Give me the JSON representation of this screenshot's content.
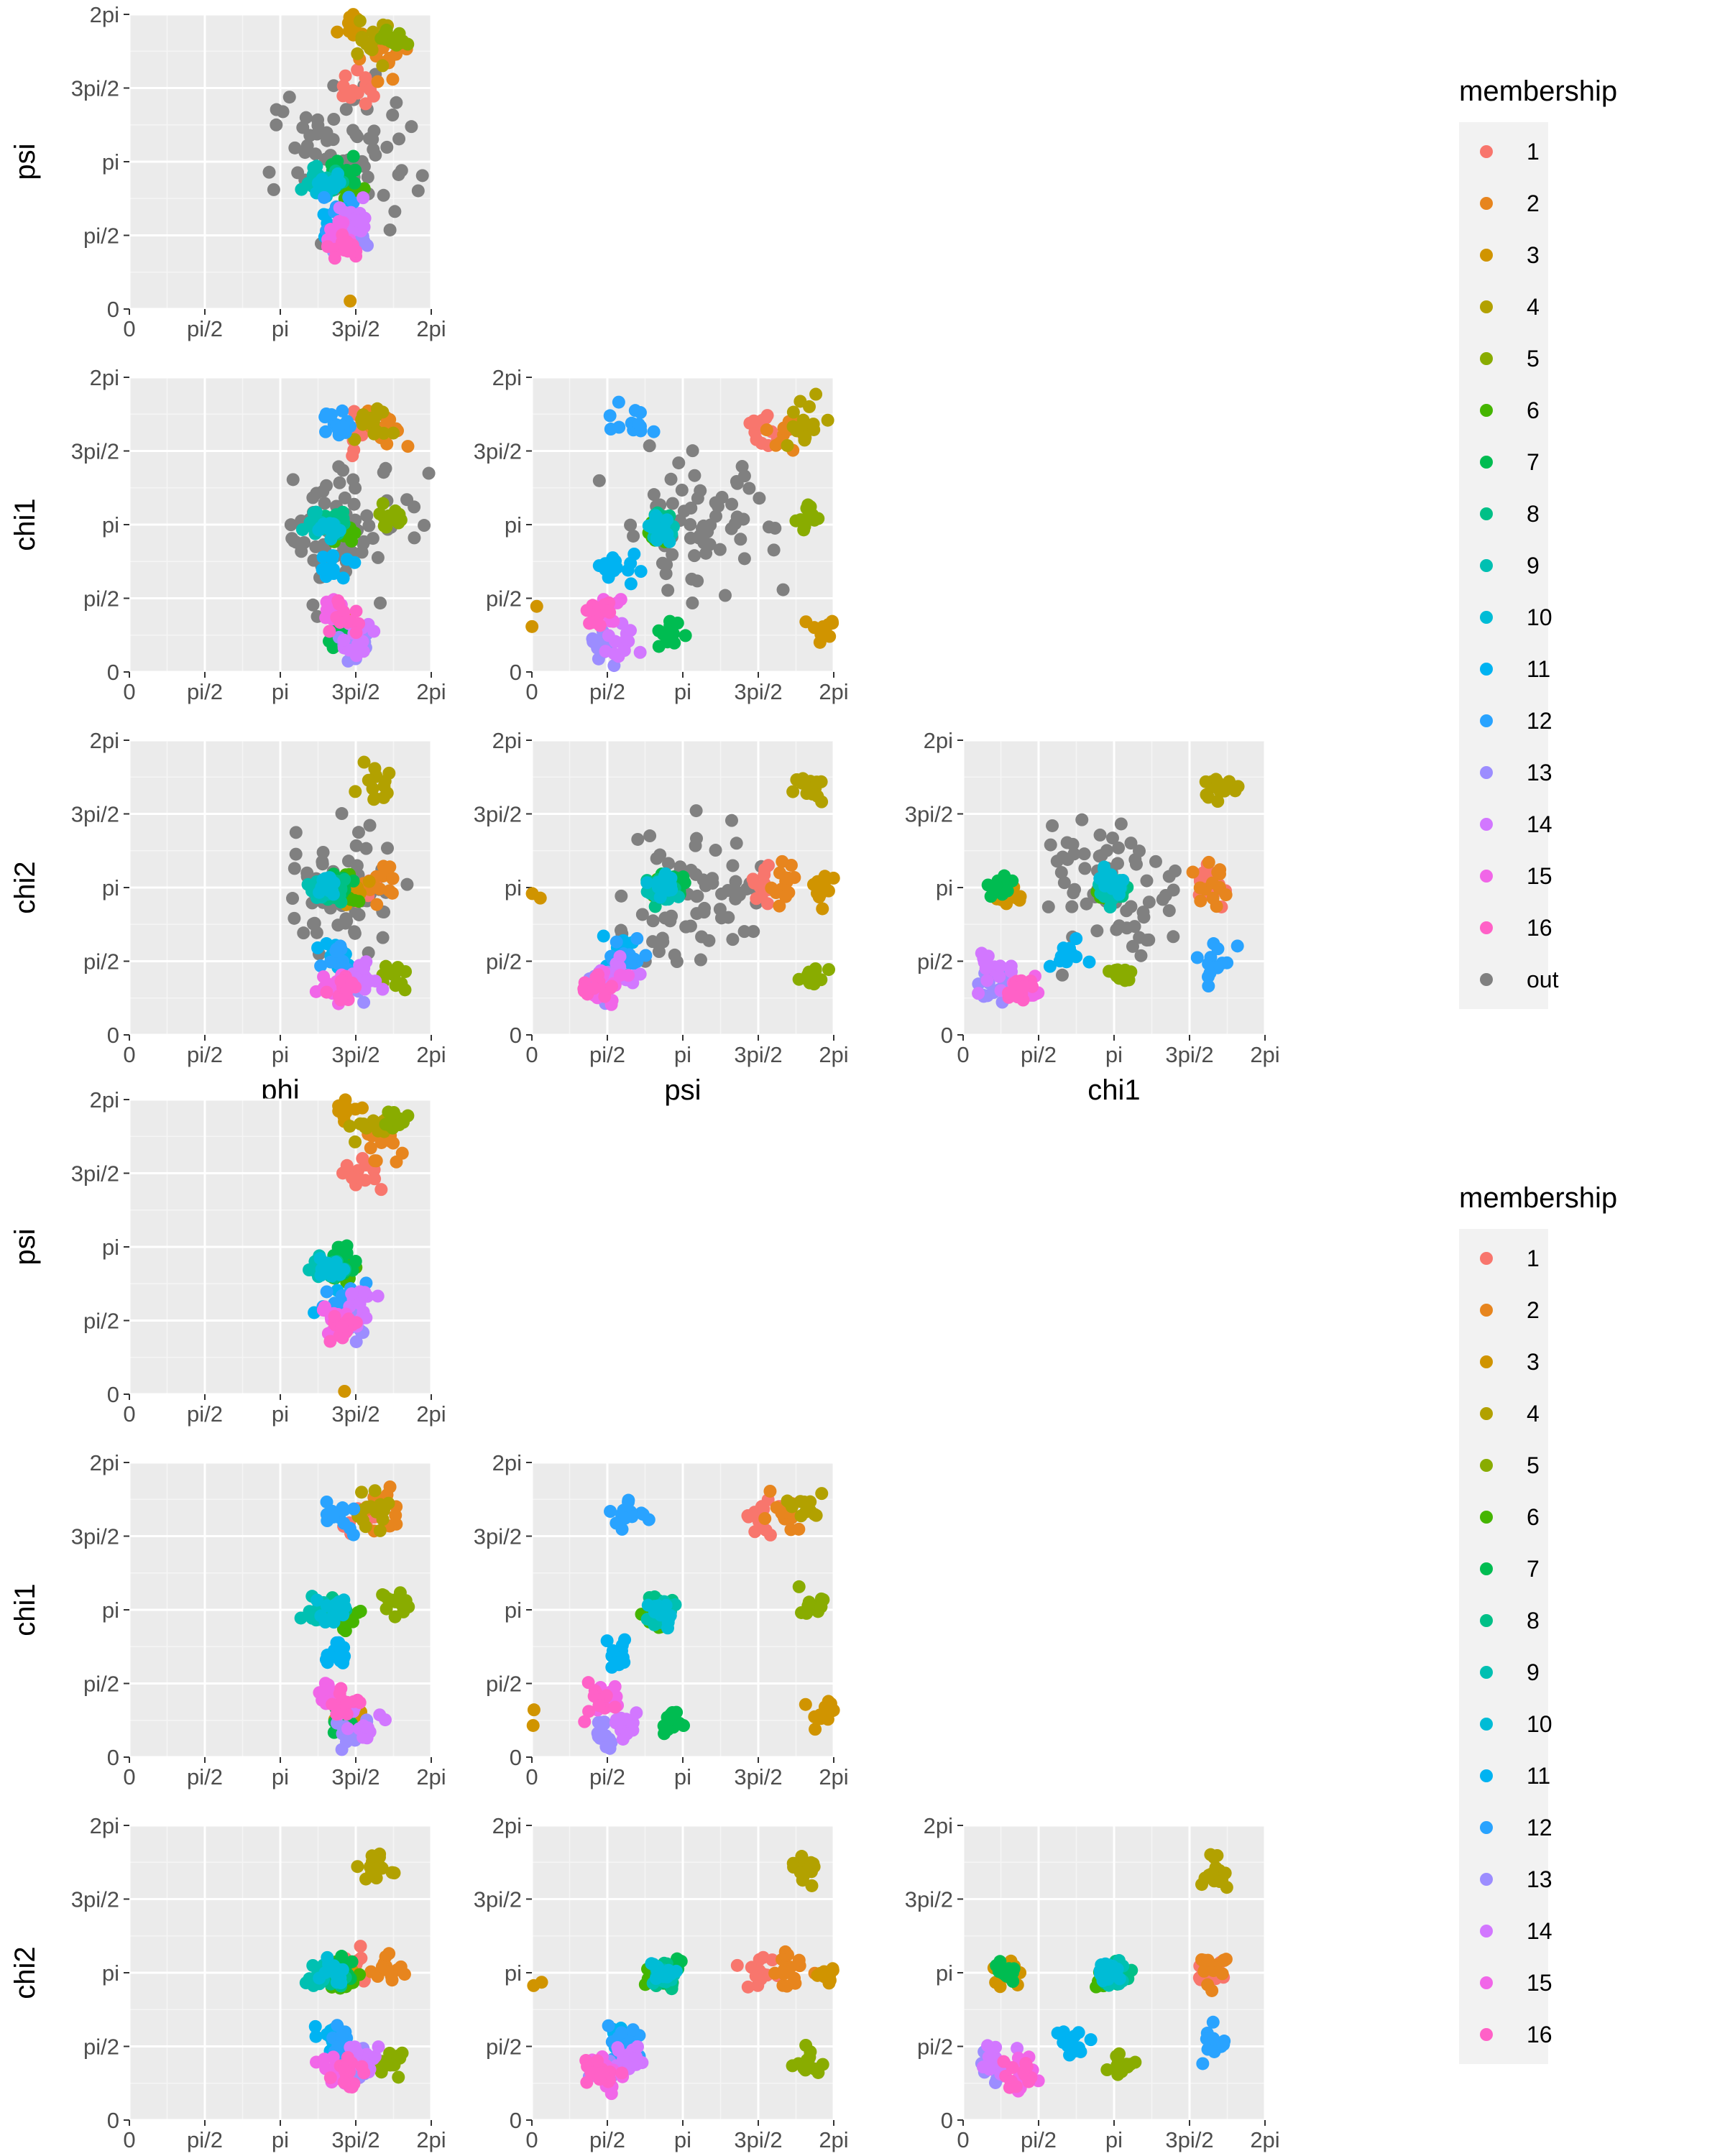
{
  "chart_data": {
    "type": "scatter",
    "axis_range": [
      0,
      6.283
    ],
    "tick_labels": [
      "0",
      "pi/2",
      "pi",
      "3pi/2",
      "2pi"
    ],
    "tick_values": [
      0,
      1.5708,
      3.1416,
      4.7124,
      6.2832
    ],
    "grid": true,
    "legend_placement": "right",
    "colors": {
      "1": "#F8766D",
      "2": "#E7851E",
      "3": "#D09400",
      "4": "#B2A100",
      "5": "#89AC00",
      "6": "#45B500",
      "7": "#00BC51",
      "8": "#00C087",
      "9": "#00C0B2",
      "10": "#00BCD6",
      "11": "#00B3F2",
      "12": "#29A3FF",
      "13": "#9C8DFF",
      "14": "#D277FF",
      "15": "#F166E8",
      "16": "#FF61C7",
      "out": "#808080"
    },
    "variables": [
      "phi",
      "psi",
      "chi1",
      "chi2"
    ],
    "row_variables": [
      "psi",
      "chi1",
      "chi2"
    ],
    "column_variables": [
      "phi",
      "psi",
      "chi1"
    ],
    "matrices": [
      {
        "legend_title": "membership",
        "legend_entries": [
          "1",
          "2",
          "3",
          "4",
          "5",
          "6",
          "7",
          "8",
          "9",
          "10",
          "11",
          "12",
          "13",
          "14",
          "15",
          "16",
          "out"
        ]
      },
      {
        "legend_title": "membership",
        "legend_entries": [
          "1",
          "2",
          "3",
          "4",
          "5",
          "6",
          "7",
          "8",
          "9",
          "10",
          "11",
          "12",
          "13",
          "14",
          "15",
          "16"
        ]
      }
    ],
    "clusters": [
      {
        "label": "1",
        "center": [
          4.8,
          4.8,
          5.1,
          3.2
        ],
        "spread": 0.3
      },
      {
        "label": "2",
        "center": [
          5.3,
          5.3,
          5.2,
          3.2
        ],
        "spread": 0.3
      },
      {
        "label": "3",
        "center": [
          4.6,
          6.1,
          0.9,
          3.1
        ],
        "spread": 0.25
      },
      {
        "label": "4",
        "center": [
          5.1,
          5.7,
          5.3,
          5.3
        ],
        "spread": 0.3
      },
      {
        "label": "5",
        "center": [
          5.5,
          5.8,
          3.3,
          1.2
        ],
        "spread": 0.2
      },
      {
        "label": "6",
        "center": [
          4.5,
          2.6,
          3.0,
          3.1
        ],
        "spread": 0.2
      },
      {
        "label": "7",
        "center": [
          4.4,
          2.9,
          0.8,
          3.2
        ],
        "spread": 0.2
      },
      {
        "label": "8",
        "center": [
          4.3,
          2.7,
          3.2,
          3.1
        ],
        "spread": 0.2
      },
      {
        "label": "9",
        "center": [
          3.9,
          2.7,
          3.1,
          3.1
        ],
        "spread": 0.2
      },
      {
        "label": "10",
        "center": [
          4.2,
          2.7,
          3.1,
          3.2
        ],
        "spread": 0.2
      },
      {
        "label": "11",
        "center": [
          4.3,
          1.8,
          2.2,
          1.7
        ],
        "spread": 0.25
      },
      {
        "label": "12",
        "center": [
          4.4,
          2.0,
          5.2,
          1.6
        ],
        "spread": 0.3
      },
      {
        "label": "13",
        "center": [
          4.7,
          1.5,
          0.6,
          1.1
        ],
        "spread": 0.25
      },
      {
        "label": "14",
        "center": [
          4.8,
          1.9,
          0.7,
          1.3
        ],
        "spread": 0.3
      },
      {
        "label": "15",
        "center": [
          4.2,
          1.6,
          1.3,
          1.0
        ],
        "spread": 0.25
      },
      {
        "label": "16",
        "center": [
          4.5,
          1.4,
          1.2,
          1.0
        ],
        "spread": 0.25
      }
    ],
    "outliers": {
      "label": "out",
      "center": [
        4.5,
        3.5,
        3.1,
        3.1
      ],
      "spread": 1.0
    }
  }
}
